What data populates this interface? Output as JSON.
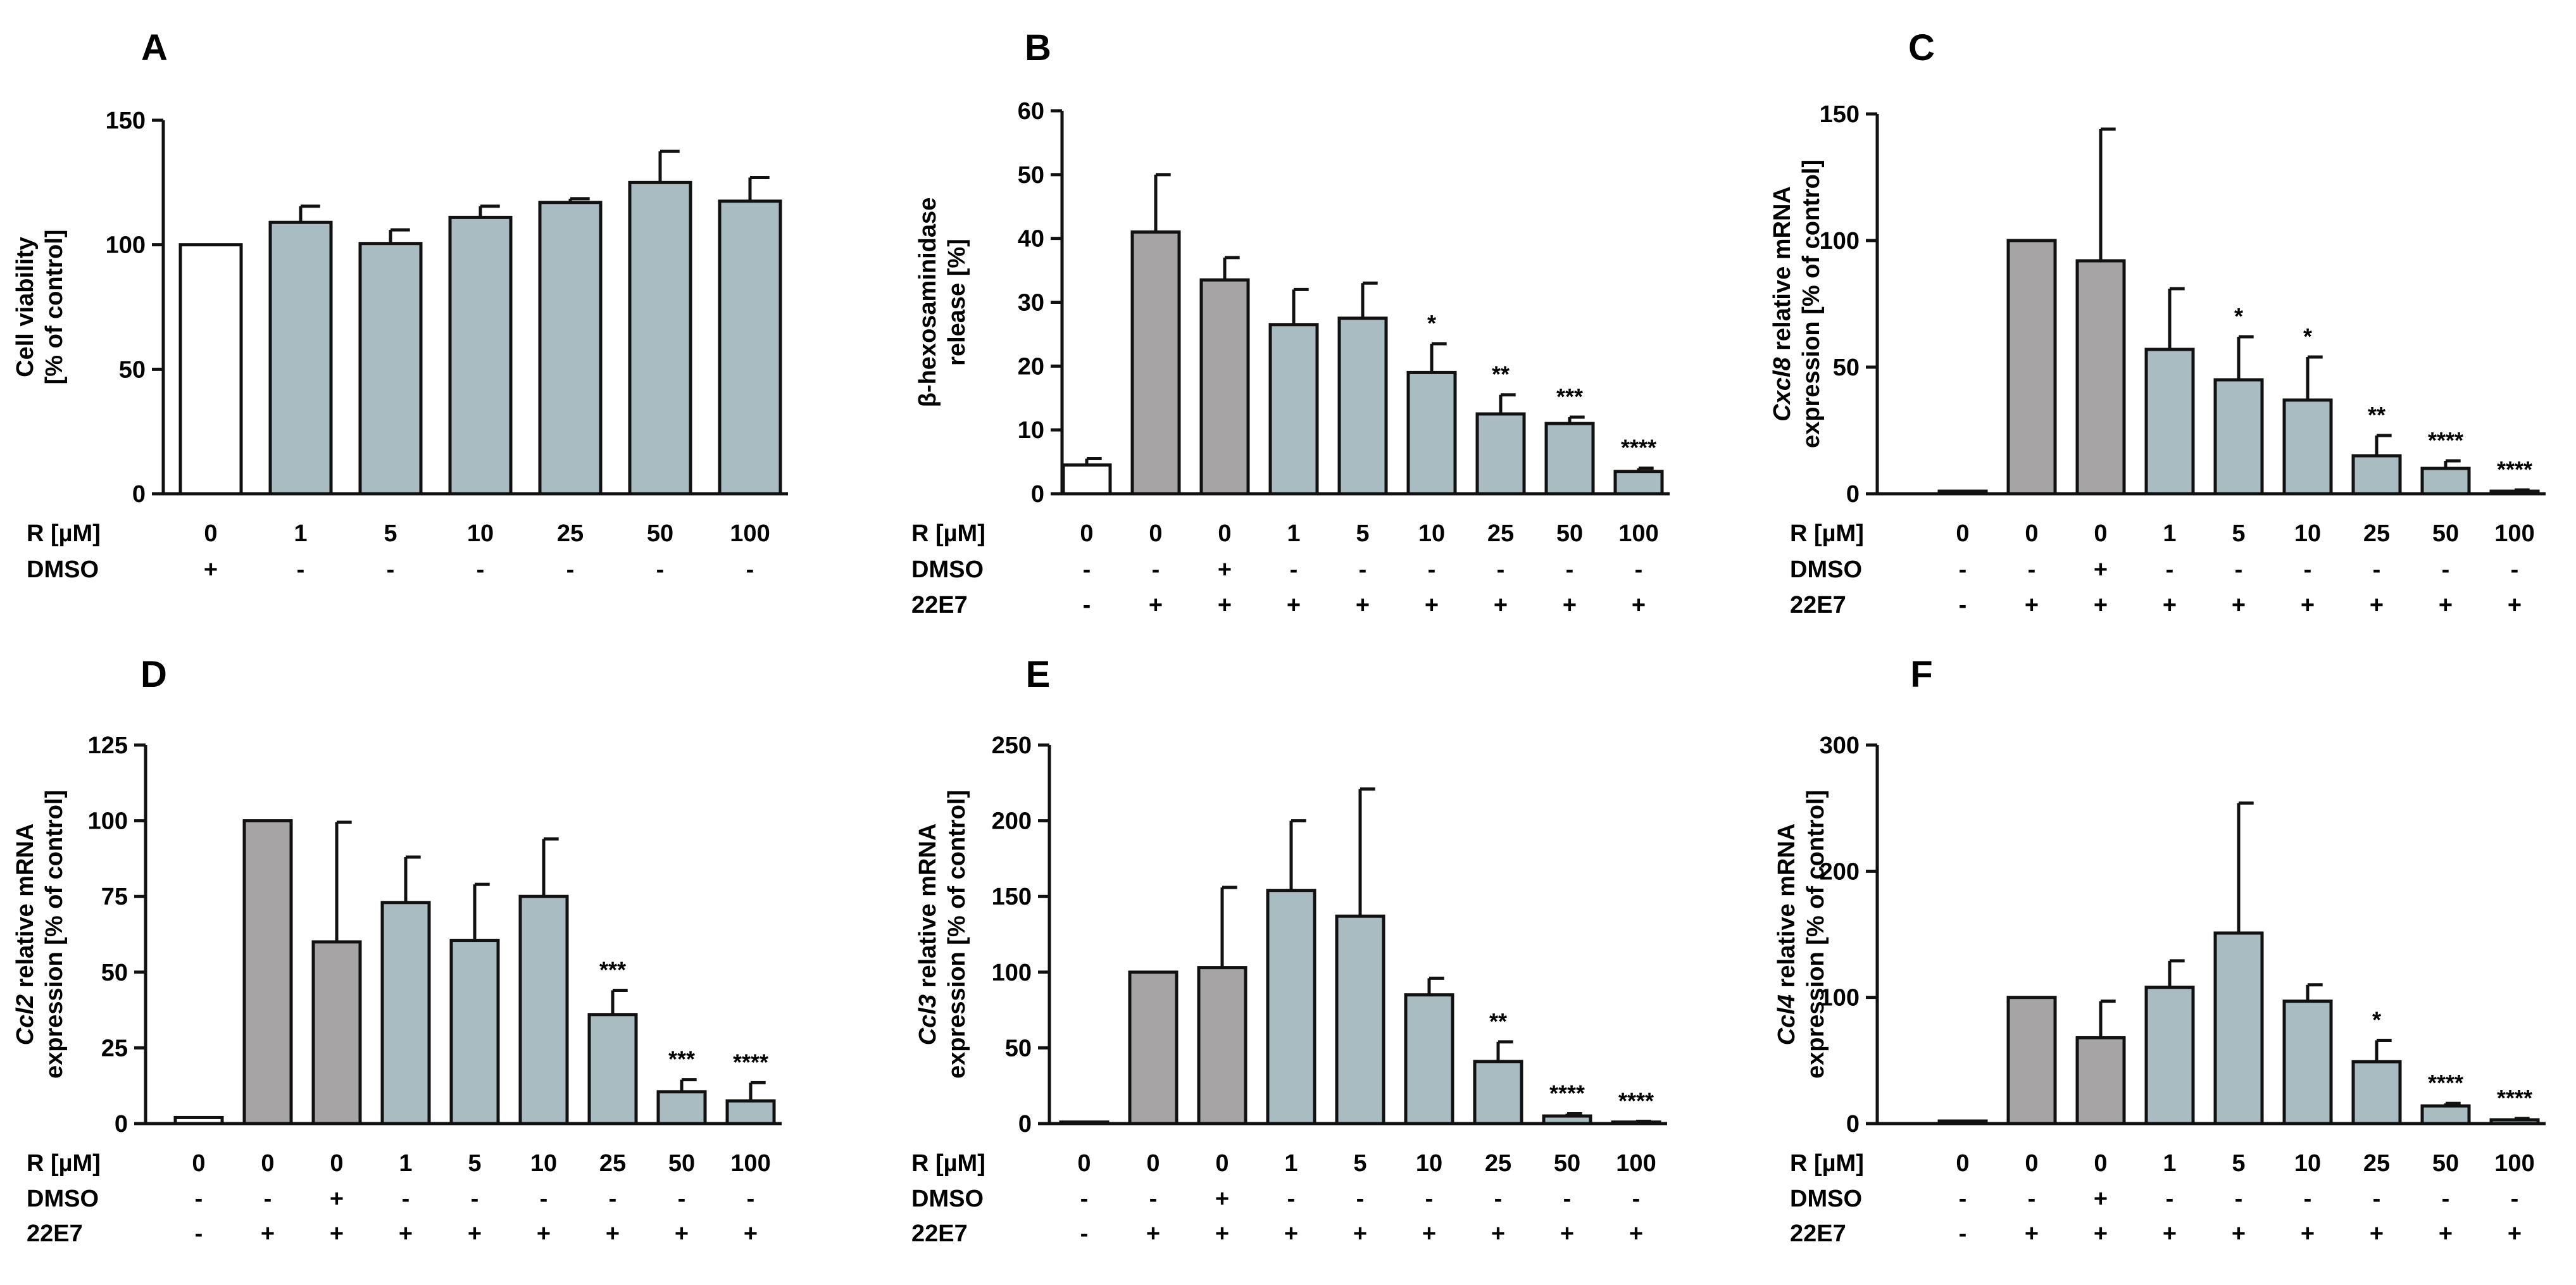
{
  "figure": {
    "colors": {
      "ctrl": "#ffffff",
      "stim": "#a7a4a6",
      "treat": "#a9bcc2",
      "stroke": "#111111"
    },
    "panels": [
      {
        "id": "A",
        "ylabel_lines": [
          {
            "parts": [
              {
                "t": "Cell viability",
                "i": false
              }
            ]
          },
          {
            "parts": [
              {
                "t": "[% of control]",
                "i": false
              }
            ]
          }
        ],
        "rows": [
          {
            "label": "R [µM]",
            "values": [
              "0",
              "1",
              "5",
              "10",
              "25",
              "50",
              "100"
            ]
          },
          {
            "label": "DMSO",
            "values": [
              "+",
              "-",
              "-",
              "-",
              "-",
              "-",
              "-"
            ]
          }
        ]
      },
      {
        "id": "B",
        "ylabel_lines": [
          {
            "parts": [
              {
                "t": "β-hexosaminidase",
                "i": false
              }
            ]
          },
          {
            "parts": [
              {
                "t": "release [%]",
                "i": false
              }
            ]
          }
        ],
        "rows": [
          {
            "label": "R [µM]",
            "values": [
              "0",
              "0",
              "0",
              "1",
              "5",
              "10",
              "25",
              "50",
              "100"
            ]
          },
          {
            "label": "DMSO",
            "values": [
              "-",
              "-",
              "+",
              "-",
              "-",
              "-",
              "-",
              "-",
              "-"
            ]
          },
          {
            "label": "22E7",
            "values": [
              "-",
              "+",
              "+",
              "+",
              "+",
              "+",
              "+",
              "+",
              "+"
            ]
          }
        ]
      },
      {
        "id": "C",
        "ylabel_lines": [
          {
            "parts": [
              {
                "t": "Cxcl8",
                "i": true
              },
              {
                "t": " relative mRNA",
                "i": false
              }
            ]
          },
          {
            "parts": [
              {
                "t": "expression [% of control]",
                "i": false
              }
            ]
          }
        ],
        "rows": [
          {
            "label": "R [µM]",
            "values": [
              "0",
              "0",
              "0",
              "1",
              "5",
              "10",
              "25",
              "50",
              "100"
            ]
          },
          {
            "label": "DMSO",
            "values": [
              "-",
              "-",
              "+",
              "-",
              "-",
              "-",
              "-",
              "-",
              "-"
            ]
          },
          {
            "label": "22E7",
            "values": [
              "-",
              "+",
              "+",
              "+",
              "+",
              "+",
              "+",
              "+",
              "+"
            ]
          }
        ]
      },
      {
        "id": "D",
        "ylabel_lines": [
          {
            "parts": [
              {
                "t": "Ccl2",
                "i": true
              },
              {
                "t": " relative mRNA",
                "i": false
              }
            ]
          },
          {
            "parts": [
              {
                "t": "expression [% of control]",
                "i": false
              }
            ]
          }
        ],
        "rows": [
          {
            "label": "R [µM]",
            "values": [
              "0",
              "0",
              "0",
              "1",
              "5",
              "10",
              "25",
              "50",
              "100"
            ]
          },
          {
            "label": "DMSO",
            "values": [
              "-",
              "-",
              "+",
              "-",
              "-",
              "-",
              "-",
              "-",
              "-"
            ]
          },
          {
            "label": "22E7",
            "values": [
              "-",
              "+",
              "+",
              "+",
              "+",
              "+",
              "+",
              "+",
              "+"
            ]
          }
        ]
      },
      {
        "id": "E",
        "ylabel_lines": [
          {
            "parts": [
              {
                "t": "Ccl3",
                "i": true
              },
              {
                "t": " relative mRNA",
                "i": false
              }
            ]
          },
          {
            "parts": [
              {
                "t": "expression [% of control]",
                "i": false
              }
            ]
          }
        ],
        "rows": [
          {
            "label": "R [µM]",
            "values": [
              "0",
              "0",
              "0",
              "1",
              "5",
              "10",
              "25",
              "50",
              "100"
            ]
          },
          {
            "label": "DMSO",
            "values": [
              "-",
              "-",
              "+",
              "-",
              "-",
              "-",
              "-",
              "-",
              "-"
            ]
          },
          {
            "label": "22E7",
            "values": [
              "-",
              "+",
              "+",
              "+",
              "+",
              "+",
              "+",
              "+",
              "+"
            ]
          }
        ]
      },
      {
        "id": "F",
        "ylabel_lines": [
          {
            "parts": [
              {
                "t": "Ccl4",
                "i": true
              },
              {
                "t": " relative mRNA",
                "i": false
              }
            ]
          },
          {
            "parts": [
              {
                "t": "expression [% of control]",
                "i": false
              }
            ]
          }
        ],
        "rows": [
          {
            "label": "R [µM]",
            "values": [
              "0",
              "0",
              "0",
              "1",
              "5",
              "10",
              "25",
              "50",
              "100"
            ]
          },
          {
            "label": "DMSO",
            "values": [
              "-",
              "-",
              "+",
              "-",
              "-",
              "-",
              "-",
              "-",
              "-"
            ]
          },
          {
            "label": "22E7",
            "values": [
              "-",
              "+",
              "+",
              "+",
              "+",
              "+",
              "+",
              "+",
              "+"
            ]
          }
        ]
      }
    ]
  },
  "chart_data": [
    {
      "panel": "A",
      "type": "bar",
      "ylabel": "Cell viability [% of control]",
      "ylim": [
        0,
        150
      ],
      "yticks": [
        0,
        50,
        100,
        150
      ],
      "categories": [
        "0",
        "1",
        "5",
        "10",
        "25",
        "50",
        "100"
      ],
      "values": [
        100,
        109,
        100.5,
        111,
        117,
        125,
        117.5
      ],
      "errors": [
        0,
        6.5,
        5.5,
        4.5,
        1.5,
        12.5,
        9.5
      ],
      "groups": [
        "ctrl",
        "treat",
        "treat",
        "treat",
        "treat",
        "treat",
        "treat"
      ],
      "significance": [
        "",
        "",
        "",
        "",
        "",
        "",
        ""
      ]
    },
    {
      "panel": "B",
      "type": "bar",
      "ylabel": "β-hexosaminidase release [%]",
      "ylim": [
        0,
        60
      ],
      "yticks": [
        0,
        10,
        20,
        30,
        40,
        50,
        60
      ],
      "categories": [
        "0",
        "0",
        "0",
        "1",
        "5",
        "10",
        "25",
        "50",
        "100"
      ],
      "values": [
        4.5,
        41,
        33.5,
        26.5,
        27.5,
        19,
        12.5,
        11,
        3.5
      ],
      "errors": [
        1,
        9,
        3.5,
        5.5,
        5.5,
        4.5,
        3,
        1,
        0.5
      ],
      "groups": [
        "ctrl",
        "stim",
        "stim",
        "treat",
        "treat",
        "treat",
        "treat",
        "treat",
        "treat"
      ],
      "significance": [
        "",
        "",
        "",
        "",
        "",
        "*",
        "**",
        "***",
        "****"
      ]
    },
    {
      "panel": "C",
      "type": "bar",
      "ylabel": "Cxcl8 relative mRNA expression [% of control]",
      "ylim": [
        0,
        150
      ],
      "yticks": [
        0,
        50,
        100,
        150
      ],
      "categories": [
        "0",
        "0",
        "0",
        "1",
        "5",
        "10",
        "25",
        "50",
        "100"
      ],
      "values": [
        1,
        100,
        92,
        57,
        45,
        37,
        15,
        10,
        1
      ],
      "errors": [
        0,
        0,
        52,
        24,
        17,
        17,
        8,
        3,
        0.5
      ],
      "groups": [
        "ctrl",
        "stim",
        "stim",
        "treat",
        "treat",
        "treat",
        "treat",
        "treat",
        "treat"
      ],
      "significance": [
        "",
        "",
        "",
        "",
        "*",
        "*",
        "**",
        "****",
        "****"
      ]
    },
    {
      "panel": "D",
      "type": "bar",
      "ylabel": "Ccl2 relative mRNA expression [% of control]",
      "ylim": [
        0,
        125
      ],
      "yticks": [
        0,
        25,
        50,
        75,
        100,
        125
      ],
      "categories": [
        "0",
        "0",
        "0",
        "1",
        "5",
        "10",
        "25",
        "50",
        "100"
      ],
      "values": [
        2,
        100,
        60,
        73,
        60.5,
        75,
        36,
        10.5,
        7.5
      ],
      "errors": [
        0,
        0,
        39.5,
        15,
        18.5,
        19,
        8,
        4,
        6
      ],
      "groups": [
        "ctrl",
        "stim",
        "stim",
        "treat",
        "treat",
        "treat",
        "treat",
        "treat",
        "treat"
      ],
      "significance": [
        "",
        "",
        "",
        "",
        "",
        "",
        "***",
        "***",
        "****"
      ]
    },
    {
      "panel": "E",
      "type": "bar",
      "ylabel": "Ccl3 relative mRNA expression [% of control]",
      "ylim": [
        0,
        250
      ],
      "yticks": [
        0,
        50,
        100,
        150,
        200,
        250
      ],
      "categories": [
        "0",
        "0",
        "0",
        "1",
        "5",
        "10",
        "25",
        "50",
        "100"
      ],
      "values": [
        1,
        100,
        103,
        154,
        137,
        85,
        41,
        5,
        1
      ],
      "errors": [
        0,
        0,
        53,
        46,
        84,
        11,
        13,
        1.5,
        0.5
      ],
      "groups": [
        "ctrl",
        "stim",
        "stim",
        "treat",
        "treat",
        "treat",
        "treat",
        "treat",
        "treat"
      ],
      "significance": [
        "",
        "",
        "",
        "",
        "",
        "",
        "**",
        "****",
        "****"
      ]
    },
    {
      "panel": "F",
      "type": "bar",
      "ylabel": "Ccl4 relative mRNA expression [% of control]",
      "ylim": [
        0,
        300
      ],
      "yticks": [
        0,
        100,
        200,
        300
      ],
      "categories": [
        "0",
        "0",
        "0",
        "1",
        "5",
        "10",
        "25",
        "50",
        "100"
      ],
      "values": [
        2,
        100,
        68,
        108,
        151,
        97,
        49,
        14,
        3
      ],
      "errors": [
        0,
        0,
        29,
        21,
        103,
        13,
        17,
        2,
        1
      ],
      "groups": [
        "ctrl",
        "stim",
        "stim",
        "treat",
        "treat",
        "treat",
        "treat",
        "treat",
        "treat"
      ],
      "significance": [
        "",
        "",
        "",
        "",
        "",
        "",
        "*",
        "****",
        "****"
      ]
    }
  ]
}
